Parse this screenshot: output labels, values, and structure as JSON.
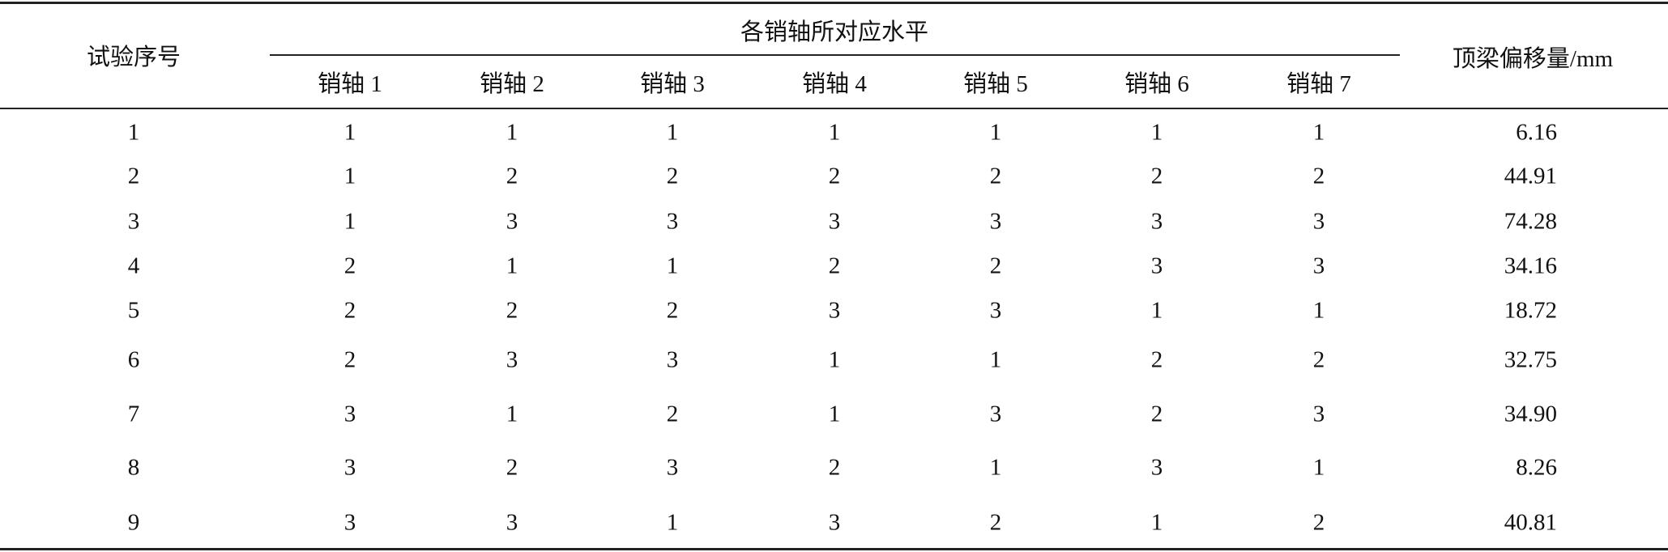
{
  "table": {
    "header": {
      "trial_no": "试验序号",
      "group": "各销轴所对应水平",
      "pins": [
        "销轴 1",
        "销轴 2",
        "销轴 3",
        "销轴 4",
        "销轴 5",
        "销轴 6",
        "销轴 7"
      ],
      "offset": "顶梁偏移量/mm"
    },
    "rows": [
      [
        "1",
        "1",
        "1",
        "1",
        "1",
        "1",
        "1",
        "1",
        "6.16"
      ],
      [
        "2",
        "1",
        "2",
        "2",
        "2",
        "2",
        "2",
        "2",
        "44.91"
      ],
      [
        "3",
        "1",
        "3",
        "3",
        "3",
        "3",
        "3",
        "3",
        "74.28"
      ],
      [
        "4",
        "2",
        "1",
        "1",
        "2",
        "2",
        "3",
        "3",
        "34.16"
      ],
      [
        "5",
        "2",
        "2",
        "2",
        "3",
        "3",
        "1",
        "1",
        "18.72"
      ],
      [
        "6",
        "2",
        "3",
        "3",
        "1",
        "1",
        "2",
        "2",
        "32.75"
      ],
      [
        "7",
        "3",
        "1",
        "2",
        "1",
        "3",
        "2",
        "3",
        "34.90"
      ],
      [
        "8",
        "3",
        "2",
        "3",
        "2",
        "1",
        "3",
        "1",
        "8.26"
      ],
      [
        "9",
        "3",
        "3",
        "1",
        "3",
        "2",
        "1",
        "2",
        "40.81"
      ]
    ]
  }
}
